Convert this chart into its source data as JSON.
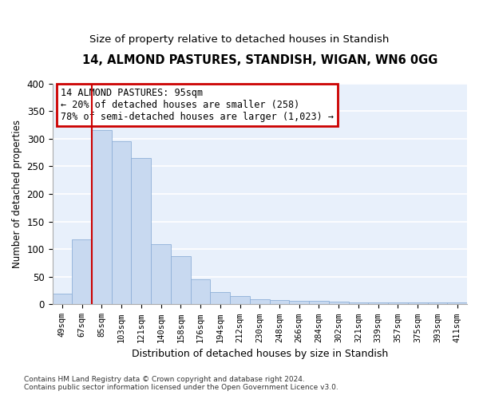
{
  "title1": "14, ALMOND PASTURES, STANDISH, WIGAN, WN6 0GG",
  "title2": "Size of property relative to detached houses in Standish",
  "xlabel": "Distribution of detached houses by size in Standish",
  "ylabel": "Number of detached properties",
  "bar_color": "#c8d9f0",
  "bar_edgecolor": "#8fb0d8",
  "categories": [
    "49sqm",
    "67sqm",
    "85sqm",
    "103sqm",
    "121sqm",
    "140sqm",
    "158sqm",
    "176sqm",
    "194sqm",
    "212sqm",
    "230sqm",
    "248sqm",
    "266sqm",
    "284sqm",
    "302sqm",
    "321sqm",
    "339sqm",
    "357sqm",
    "375sqm",
    "393sqm",
    "411sqm"
  ],
  "values": [
    20,
    118,
    315,
    296,
    265,
    109,
    88,
    45,
    22,
    15,
    10,
    8,
    7,
    7,
    5,
    3,
    4,
    4,
    4,
    4,
    4
  ],
  "vline_x": 1.5,
  "annotation_line1": "14 ALMOND PASTURES: 95sqm",
  "annotation_line2": "← 20% of detached houses are smaller (258)",
  "annotation_line3": "78% of semi-detached houses are larger (1,023) →",
  "box_color": "#cc0000",
  "vline_color": "#cc0000",
  "footnote": "Contains HM Land Registry data © Crown copyright and database right 2024.\nContains public sector information licensed under the Open Government Licence v3.0.",
  "ylim": [
    0,
    400
  ],
  "yticks": [
    0,
    50,
    100,
    150,
    200,
    250,
    300,
    350,
    400
  ],
  "bg_color": "#e8f0fb",
  "grid_color": "white"
}
